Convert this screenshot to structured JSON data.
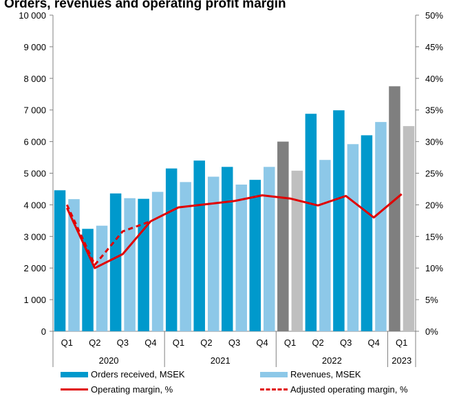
{
  "chart_data": {
    "type": "bar",
    "title": "Orders, revenues and operating profit margin",
    "categories": [
      "Q1",
      "Q2",
      "Q3",
      "Q4",
      "Q1",
      "Q2",
      "Q3",
      "Q4",
      "Q1",
      "Q2",
      "Q3",
      "Q4",
      "Q1"
    ],
    "year_labels": [
      "2020",
      "2021",
      "2022",
      "2023"
    ],
    "y_left": {
      "ticks": [
        "0",
        "1 000",
        "2 000",
        "3 000",
        "4 000",
        "5 000",
        "6 000",
        "7 000",
        "8 000",
        "9 000",
        "10 000"
      ],
      "ylim": [
        0,
        10000
      ]
    },
    "y_right": {
      "ticks": [
        "0%",
        "5%",
        "10%",
        "15%",
        "20%",
        "25%",
        "30%",
        "35%",
        "40%",
        "45%",
        "50%"
      ],
      "ylim": [
        0,
        50
      ]
    },
    "series": [
      {
        "name": "Orders received, MSEK",
        "kind": "bar",
        "axis": "left",
        "color": "#0099CC",
        "highlight_color": "#7F7F7F",
        "values": [
          4460,
          3240,
          4360,
          4190,
          5150,
          5400,
          5200,
          4790,
          6000,
          6880,
          6990,
          6200,
          7750
        ]
      },
      {
        "name": "Revenues, MSEK",
        "kind": "bar",
        "axis": "left",
        "color": "#8DC8E8",
        "highlight_color": "#BFBFBF",
        "values": [
          4180,
          3340,
          4210,
          4410,
          4720,
          4890,
          4640,
          5200,
          5080,
          5420,
          5920,
          6620,
          6490
        ]
      },
      {
        "name": "Operating margin, %",
        "kind": "line",
        "axis": "right",
        "color": "#E00000",
        "dash": "solid",
        "values": [
          19.5,
          10.0,
          12.2,
          17.4,
          19.6,
          20.1,
          20.6,
          21.5,
          21.0,
          19.9,
          21.4,
          18.0,
          21.7
        ]
      },
      {
        "name": "Adjusted operating margin, %",
        "kind": "line",
        "axis": "right",
        "color": "#E00000",
        "dash": "dashed",
        "values": [
          20.0,
          10.5,
          15.8,
          17.4,
          null,
          null,
          null,
          null,
          null,
          null,
          null,
          null,
          null
        ]
      }
    ],
    "highlighted_categories": [
      8,
      12
    ],
    "grid": false,
    "legend_position": "bottom"
  }
}
